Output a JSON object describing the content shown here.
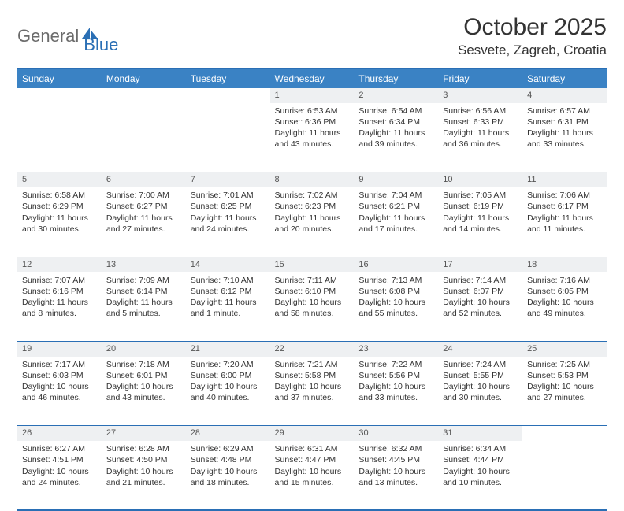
{
  "logo": {
    "part1": "General",
    "part2": "Blue"
  },
  "title": "October 2025",
  "location": "Sesvete, Zagreb, Croatia",
  "colors": {
    "header_bg": "#3a82c4",
    "border": "#2a6fb5",
    "daynum_bg": "#eef0f2",
    "text": "#333333",
    "logo_gray": "#6b6b6b",
    "logo_blue": "#2a6fb5"
  },
  "weekdays": [
    "Sunday",
    "Monday",
    "Tuesday",
    "Wednesday",
    "Thursday",
    "Friday",
    "Saturday"
  ],
  "weeks": [
    {
      "nums": [
        "",
        "",
        "",
        "1",
        "2",
        "3",
        "4"
      ],
      "cells": [
        null,
        null,
        null,
        {
          "sunrise": "Sunrise: 6:53 AM",
          "sunset": "Sunset: 6:36 PM",
          "day1": "Daylight: 11 hours",
          "day2": "and 43 minutes."
        },
        {
          "sunrise": "Sunrise: 6:54 AM",
          "sunset": "Sunset: 6:34 PM",
          "day1": "Daylight: 11 hours",
          "day2": "and 39 minutes."
        },
        {
          "sunrise": "Sunrise: 6:56 AM",
          "sunset": "Sunset: 6:33 PM",
          "day1": "Daylight: 11 hours",
          "day2": "and 36 minutes."
        },
        {
          "sunrise": "Sunrise: 6:57 AM",
          "sunset": "Sunset: 6:31 PM",
          "day1": "Daylight: 11 hours",
          "day2": "and 33 minutes."
        }
      ]
    },
    {
      "nums": [
        "5",
        "6",
        "7",
        "8",
        "9",
        "10",
        "11"
      ],
      "cells": [
        {
          "sunrise": "Sunrise: 6:58 AM",
          "sunset": "Sunset: 6:29 PM",
          "day1": "Daylight: 11 hours",
          "day2": "and 30 minutes."
        },
        {
          "sunrise": "Sunrise: 7:00 AM",
          "sunset": "Sunset: 6:27 PM",
          "day1": "Daylight: 11 hours",
          "day2": "and 27 minutes."
        },
        {
          "sunrise": "Sunrise: 7:01 AM",
          "sunset": "Sunset: 6:25 PM",
          "day1": "Daylight: 11 hours",
          "day2": "and 24 minutes."
        },
        {
          "sunrise": "Sunrise: 7:02 AM",
          "sunset": "Sunset: 6:23 PM",
          "day1": "Daylight: 11 hours",
          "day2": "and 20 minutes."
        },
        {
          "sunrise": "Sunrise: 7:04 AM",
          "sunset": "Sunset: 6:21 PM",
          "day1": "Daylight: 11 hours",
          "day2": "and 17 minutes."
        },
        {
          "sunrise": "Sunrise: 7:05 AM",
          "sunset": "Sunset: 6:19 PM",
          "day1": "Daylight: 11 hours",
          "day2": "and 14 minutes."
        },
        {
          "sunrise": "Sunrise: 7:06 AM",
          "sunset": "Sunset: 6:17 PM",
          "day1": "Daylight: 11 hours",
          "day2": "and 11 minutes."
        }
      ]
    },
    {
      "nums": [
        "12",
        "13",
        "14",
        "15",
        "16",
        "17",
        "18"
      ],
      "cells": [
        {
          "sunrise": "Sunrise: 7:07 AM",
          "sunset": "Sunset: 6:16 PM",
          "day1": "Daylight: 11 hours",
          "day2": "and 8 minutes."
        },
        {
          "sunrise": "Sunrise: 7:09 AM",
          "sunset": "Sunset: 6:14 PM",
          "day1": "Daylight: 11 hours",
          "day2": "and 5 minutes."
        },
        {
          "sunrise": "Sunrise: 7:10 AM",
          "sunset": "Sunset: 6:12 PM",
          "day1": "Daylight: 11 hours",
          "day2": "and 1 minute."
        },
        {
          "sunrise": "Sunrise: 7:11 AM",
          "sunset": "Sunset: 6:10 PM",
          "day1": "Daylight: 10 hours",
          "day2": "and 58 minutes."
        },
        {
          "sunrise": "Sunrise: 7:13 AM",
          "sunset": "Sunset: 6:08 PM",
          "day1": "Daylight: 10 hours",
          "day2": "and 55 minutes."
        },
        {
          "sunrise": "Sunrise: 7:14 AM",
          "sunset": "Sunset: 6:07 PM",
          "day1": "Daylight: 10 hours",
          "day2": "and 52 minutes."
        },
        {
          "sunrise": "Sunrise: 7:16 AM",
          "sunset": "Sunset: 6:05 PM",
          "day1": "Daylight: 10 hours",
          "day2": "and 49 minutes."
        }
      ]
    },
    {
      "nums": [
        "19",
        "20",
        "21",
        "22",
        "23",
        "24",
        "25"
      ],
      "cells": [
        {
          "sunrise": "Sunrise: 7:17 AM",
          "sunset": "Sunset: 6:03 PM",
          "day1": "Daylight: 10 hours",
          "day2": "and 46 minutes."
        },
        {
          "sunrise": "Sunrise: 7:18 AM",
          "sunset": "Sunset: 6:01 PM",
          "day1": "Daylight: 10 hours",
          "day2": "and 43 minutes."
        },
        {
          "sunrise": "Sunrise: 7:20 AM",
          "sunset": "Sunset: 6:00 PM",
          "day1": "Daylight: 10 hours",
          "day2": "and 40 minutes."
        },
        {
          "sunrise": "Sunrise: 7:21 AM",
          "sunset": "Sunset: 5:58 PM",
          "day1": "Daylight: 10 hours",
          "day2": "and 37 minutes."
        },
        {
          "sunrise": "Sunrise: 7:22 AM",
          "sunset": "Sunset: 5:56 PM",
          "day1": "Daylight: 10 hours",
          "day2": "and 33 minutes."
        },
        {
          "sunrise": "Sunrise: 7:24 AM",
          "sunset": "Sunset: 5:55 PM",
          "day1": "Daylight: 10 hours",
          "day2": "and 30 minutes."
        },
        {
          "sunrise": "Sunrise: 7:25 AM",
          "sunset": "Sunset: 5:53 PM",
          "day1": "Daylight: 10 hours",
          "day2": "and 27 minutes."
        }
      ]
    },
    {
      "nums": [
        "26",
        "27",
        "28",
        "29",
        "30",
        "31",
        ""
      ],
      "cells": [
        {
          "sunrise": "Sunrise: 6:27 AM",
          "sunset": "Sunset: 4:51 PM",
          "day1": "Daylight: 10 hours",
          "day2": "and 24 minutes."
        },
        {
          "sunrise": "Sunrise: 6:28 AM",
          "sunset": "Sunset: 4:50 PM",
          "day1": "Daylight: 10 hours",
          "day2": "and 21 minutes."
        },
        {
          "sunrise": "Sunrise: 6:29 AM",
          "sunset": "Sunset: 4:48 PM",
          "day1": "Daylight: 10 hours",
          "day2": "and 18 minutes."
        },
        {
          "sunrise": "Sunrise: 6:31 AM",
          "sunset": "Sunset: 4:47 PM",
          "day1": "Daylight: 10 hours",
          "day2": "and 15 minutes."
        },
        {
          "sunrise": "Sunrise: 6:32 AM",
          "sunset": "Sunset: 4:45 PM",
          "day1": "Daylight: 10 hours",
          "day2": "and 13 minutes."
        },
        {
          "sunrise": "Sunrise: 6:34 AM",
          "sunset": "Sunset: 4:44 PM",
          "day1": "Daylight: 10 hours",
          "day2": "and 10 minutes."
        },
        null
      ]
    }
  ]
}
